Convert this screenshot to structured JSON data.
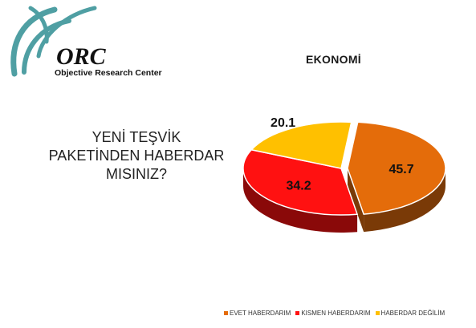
{
  "logo": {
    "name": "ORC",
    "tagline": "Objective Research Center",
    "colors": {
      "swirl": "#4f9fa3",
      "text": "#111111"
    }
  },
  "subtitle": "EKONOMİ",
  "question": "YENİ TEŞVİK\nPAKETİNDEN HABERDAR\nMISINIZ?",
  "chart_data": {
    "type": "pie",
    "title": "",
    "slices": [
      {
        "label": "EVET HABERDARIM",
        "value": 45.7,
        "color": "#e46c0a",
        "dark": "#7a3a07"
      },
      {
        "label": "KISMEN HABERDARIM",
        "value": 34.2,
        "color": "#ff1111",
        "dark": "#8a0909"
      },
      {
        "label": "HABERDAR DEĞİLİM",
        "value": 20.1,
        "color": "#ffc000",
        "dark": "#8a6a00"
      }
    ],
    "data_labels": [
      "45.7",
      "34.2",
      "20.1"
    ],
    "legend_position": "bottom"
  }
}
